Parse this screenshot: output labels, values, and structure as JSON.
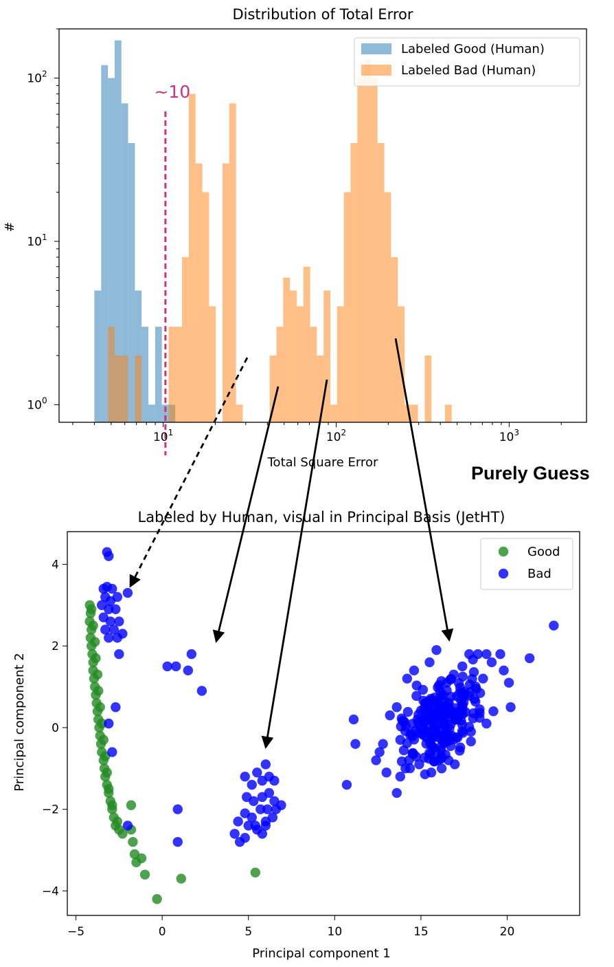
{
  "annotation": "Purely Guess",
  "chart_data": [
    {
      "type": "bar",
      "title": "Distribution of Total Error",
      "xlabel": "Total Square Error",
      "ylabel": "#",
      "xscale": "log",
      "yscale": "log",
      "xlim": [
        2.5,
        2800
      ],
      "ylim": [
        0.78,
        200
      ],
      "xticks": [
        {
          "v": 10,
          "b": "10",
          "e": "1"
        },
        {
          "v": 100,
          "b": "10",
          "e": "2"
        },
        {
          "v": 1000,
          "b": "10",
          "e": "3"
        }
      ],
      "yticks": [
        {
          "v": 1,
          "b": "10",
          "e": "0"
        },
        {
          "v": 10,
          "b": "10",
          "e": "1"
        },
        {
          "v": 100,
          "b": "10",
          "e": "2"
        }
      ],
      "threshold": {
        "value": 10.3,
        "label": "~10",
        "color": "#cc3377"
      },
      "legend": {
        "position": "top-right"
      },
      "bin_edges": [
        4.0,
        4.38,
        4.79,
        5.24,
        5.73,
        6.27,
        6.86,
        7.5,
        8.21,
        8.98,
        9.82,
        10.74,
        11.75,
        12.85,
        14.06,
        15.38,
        16.82,
        18.4,
        20.13,
        22.02,
        24.09,
        26.35,
        28.82,
        31.53,
        34.49,
        37.73,
        41.27,
        45.14,
        49.38,
        54.02,
        59.09,
        64.64,
        70.71,
        77.35,
        84.61,
        92.55,
        101.2,
        110.7,
        121.1,
        132.5,
        144.9,
        158.5,
        173.4,
        189.7,
        207.5,
        227.0,
        248.3,
        271.6,
        297.1,
        325.0,
        355.5,
        388.9,
        425.4,
        465.4,
        509.1
      ],
      "series": [
        {
          "name": "Labeled Good (Human)",
          "color": "#1f77b4",
          "counts": [
            5,
            120,
            100,
            170,
            70,
            40,
            5,
            3,
            1,
            3,
            1,
            1,
            0,
            0,
            0,
            0,
            0,
            0,
            0,
            0,
            0,
            0,
            0,
            0,
            0,
            0,
            0,
            0,
            0,
            0,
            0,
            0,
            0,
            0,
            0,
            0,
            0,
            0,
            0,
            0,
            0,
            0,
            0,
            0,
            0,
            0,
            0,
            0,
            0,
            0,
            0,
            0,
            0,
            0
          ]
        },
        {
          "name": "Labeled Bad (Human)",
          "color": "#ff7f0e",
          "counts": [
            0,
            0,
            3,
            2,
            2,
            0,
            2,
            0,
            0,
            0,
            0,
            3,
            3,
            8,
            80,
            30,
            20,
            4,
            0,
            30,
            70,
            1,
            0,
            0,
            0,
            0,
            2,
            3,
            6,
            5,
            4,
            7,
            3,
            2,
            5,
            1,
            4,
            20,
            40,
            100,
            130,
            100,
            40,
            20,
            8,
            4,
            1,
            1,
            0,
            2,
            0,
            0,
            1,
            0
          ]
        }
      ]
    },
    {
      "type": "scatter",
      "title": "Labeled by Human, visual in Principal Basis (JetHT)",
      "xlabel": "Principal component 1",
      "ylabel": "Principal component 2",
      "xlim": [
        -5.5,
        24.2
      ],
      "ylim": [
        -4.6,
        4.8
      ],
      "xticks": [
        -5,
        0,
        5,
        10,
        15,
        20
      ],
      "yticks": [
        -4,
        -2,
        0,
        2,
        4
      ],
      "legend": {
        "position": "top-right"
      },
      "series": [
        {
          "name": "Good",
          "color": "#228b22",
          "points": [
            [
              -4.2,
              3.0
            ],
            [
              -4.15,
              2.8
            ],
            [
              -4.2,
              2.6
            ],
            [
              -4.1,
              2.4
            ],
            [
              -4.15,
              2.2
            ],
            [
              -4.1,
              2.0
            ],
            [
              -4.05,
              1.8
            ],
            [
              -4.0,
              1.6
            ],
            [
              -4.0,
              1.4
            ],
            [
              -3.95,
              1.2
            ],
            [
              -3.9,
              1.0
            ],
            [
              -3.85,
              0.8
            ],
            [
              -3.8,
              0.6
            ],
            [
              -3.75,
              0.4
            ],
            [
              -3.7,
              0.2
            ],
            [
              -3.65,
              0.0
            ],
            [
              -3.6,
              -0.2
            ],
            [
              -3.55,
              -0.4
            ],
            [
              -3.5,
              -0.6
            ],
            [
              -3.4,
              -0.8
            ],
            [
              -3.35,
              -1.0
            ],
            [
              -3.3,
              -1.2
            ],
            [
              -3.2,
              -1.4
            ],
            [
              -3.1,
              -1.6
            ],
            [
              -3.0,
              -1.8
            ],
            [
              -2.9,
              -2.0
            ],
            [
              -2.8,
              -2.2
            ],
            [
              -2.7,
              -2.4
            ],
            [
              -2.5,
              -2.5
            ],
            [
              -2.3,
              -2.6
            ],
            [
              -4.1,
              2.9
            ],
            [
              -4.0,
              2.5
            ],
            [
              -3.9,
              2.1
            ],
            [
              -3.85,
              1.7
            ],
            [
              -3.75,
              1.3
            ],
            [
              -3.7,
              0.9
            ],
            [
              -3.6,
              0.5
            ],
            [
              -3.5,
              0.1
            ],
            [
              -3.4,
              -0.3
            ],
            [
              -3.3,
              -0.7
            ],
            [
              -3.2,
              -1.1
            ],
            [
              -3.1,
              -1.5
            ],
            [
              -2.9,
              -1.9
            ],
            [
              -2.6,
              -2.3
            ],
            [
              -1.8,
              -1.9
            ],
            [
              -1.8,
              -2.5
            ],
            [
              -1.7,
              -2.8
            ],
            [
              -1.6,
              -3.1
            ],
            [
              -1.5,
              -3.3
            ],
            [
              -1.2,
              -3.2
            ],
            [
              -1.0,
              -3.6
            ],
            [
              -0.3,
              -4.2
            ],
            [
              1.1,
              -3.7
            ],
            [
              5.4,
              -3.55
            ]
          ]
        },
        {
          "name": "Bad",
          "color": "#0000ff",
          "points": [
            [
              -3.2,
              4.3
            ],
            [
              -3.1,
              4.2
            ],
            [
              -3.4,
              3.4
            ],
            [
              -3.2,
              3.45
            ],
            [
              -2.9,
              3.4
            ],
            [
              -3.3,
              3.2
            ],
            [
              -3.0,
              3.1
            ],
            [
              -2.6,
              3.2
            ],
            [
              -3.5,
              3.0
            ],
            [
              -3.1,
              2.9
            ],
            [
              -2.7,
              2.9
            ],
            [
              -3.4,
              2.7
            ],
            [
              -3.0,
              2.6
            ],
            [
              -2.5,
              2.6
            ],
            [
              -3.3,
              2.4
            ],
            [
              -2.8,
              2.4
            ],
            [
              -3.1,
              2.2
            ],
            [
              -2.6,
              2.2
            ],
            [
              -2.3,
              2.3
            ],
            [
              -2.0,
              3.3
            ],
            [
              -2.5,
              1.8
            ],
            [
              -2.7,
              0.5
            ],
            [
              -3.1,
              0.1
            ],
            [
              -2.9,
              -0.6
            ],
            [
              -2.0,
              -2.4
            ],
            [
              0.3,
              1.5
            ],
            [
              0.8,
              1.5
            ],
            [
              1.5,
              1.4
            ],
            [
              1.7,
              1.8
            ],
            [
              2.3,
              0.9
            ],
            [
              0.9,
              -2.0
            ],
            [
              0.9,
              -2.8
            ],
            [
              4.8,
              -1.2
            ],
            [
              5.2,
              -1.4
            ],
            [
              5.5,
              -1.1
            ],
            [
              5.8,
              -1.3
            ],
            [
              6.0,
              -0.9
            ],
            [
              6.2,
              -1.2
            ],
            [
              6.5,
              -1.3
            ],
            [
              4.9,
              -1.7
            ],
            [
              5.3,
              -1.8
            ],
            [
              5.8,
              -1.7
            ],
            [
              6.2,
              -1.6
            ],
            [
              6.5,
              -1.8
            ],
            [
              4.8,
              -2.1
            ],
            [
              5.2,
              -2.2
            ],
            [
              5.7,
              -2.0
            ],
            [
              6.1,
              -2.0
            ],
            [
              6.6,
              -2.0
            ],
            [
              6.9,
              -1.9
            ],
            [
              4.4,
              -2.3
            ],
            [
              5.0,
              -2.4
            ],
            [
              5.5,
              -2.5
            ],
            [
              6.0,
              -2.3
            ],
            [
              6.4,
              -2.2
            ],
            [
              4.2,
              -2.6
            ],
            [
              4.8,
              -2.7
            ],
            [
              5.8,
              -2.6
            ],
            [
              6.0,
              -2.4
            ],
            [
              5.4,
              -2.4
            ],
            [
              4.5,
              -2.8
            ],
            [
              10.7,
              -1.4
            ],
            [
              11.1,
              0.2
            ],
            [
              11.2,
              -0.4
            ],
            [
              12.4,
              -0.8
            ],
            [
              12.6,
              -0.6
            ],
            [
              12.8,
              -0.4
            ],
            [
              13.0,
              -1.1
            ],
            [
              13.2,
              0.3
            ],
            [
              13.6,
              0.5
            ],
            [
              13.8,
              -0.3
            ],
            [
              14.3,
              -0.8
            ],
            [
              13.8,
              -1.2
            ],
            [
              14.2,
              1.2
            ],
            [
              14.6,
              1.4
            ],
            [
              15.5,
              1.6
            ],
            [
              15.9,
              1.9
            ],
            [
              15.3,
              0.6
            ],
            [
              15.2,
              -0.2
            ],
            [
              14.8,
              0.2
            ],
            [
              16.1,
              0.9
            ],
            [
              16.5,
              1.1
            ],
            [
              16.9,
              1.3
            ],
            [
              17.4,
              1.5
            ],
            [
              17.8,
              1.8
            ],
            [
              18.3,
              1.8
            ],
            [
              18.8,
              1.8
            ],
            [
              19.1,
              1.6
            ],
            [
              19.6,
              1.8
            ],
            [
              19.8,
              1.4
            ],
            [
              20.1,
              1.1
            ],
            [
              20.2,
              0.5
            ],
            [
              21.3,
              1.7
            ],
            [
              22.7,
              2.5
            ],
            [
              16.6,
              -0.8
            ],
            [
              16.2,
              -1.0
            ],
            [
              15.6,
              -1.1
            ],
            [
              14.9,
              -0.9
            ],
            [
              14.1,
              -1.0
            ],
            [
              13.6,
              -1.6
            ],
            [
              16.8,
              -0.2
            ],
            [
              17.2,
              0.4
            ],
            [
              18.1,
              0.7
            ],
            [
              18.6,
              1.2
            ],
            [
              19.2,
              0.4
            ],
            [
              18.8,
              0.1
            ],
            [
              17.9,
              -0.1
            ],
            [
              17.5,
              0.8
            ],
            [
              15.8,
              0.3
            ]
          ],
          "cluster": {
            "center": [
              16.3,
              0.2
            ],
            "spread": [
              1.35,
              0.55
            ],
            "slope": 0.21,
            "count": 190
          }
        }
      ]
    }
  ]
}
